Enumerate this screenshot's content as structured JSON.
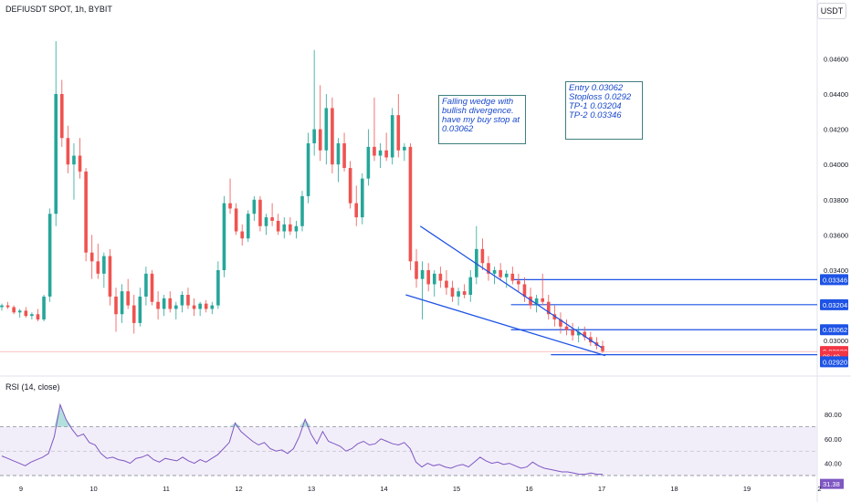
{
  "header": {
    "symbol": "DEFIUSDT SPOT, 1h, BYBIT",
    "currency": "USDT",
    "rsi_label": "RSI (14, close)"
  },
  "annotations": {
    "note1": "Falling wedge with\nbullish divergence.\nhave my buy stop at\n0.03062",
    "note2": "Entry 0.03062\nStoploss 0.0292\nTP-1 0.03204\nTP-2 0.03346"
  },
  "colors": {
    "up": "#26a69a",
    "down": "#ef5350",
    "level_line": "#1e53e5",
    "wedge": "#1e53e5",
    "rsi_line": "#7e57c2",
    "rsi_band": "#ede7f6",
    "current_price": "#f23645"
  },
  "chart_data": [
    {
      "type": "candlestick",
      "title": "DEFIUSDT SPOT, 1h, BYBIT",
      "x_ticks": [
        "9",
        "10",
        "11",
        "12",
        "13",
        "14",
        "15",
        "16",
        "17",
        "18",
        "19",
        "2"
      ],
      "x_range": [
        8.8,
        20.0
      ],
      "y_ticks": [
        "0.04600",
        "0.04400",
        "0.04200",
        "0.04000",
        "0.03800",
        "0.03600",
        "0.03400",
        "0.03000"
      ],
      "y_range": [
        0.0283,
        0.0483
      ],
      "price_labels": [
        {
          "label": "0.03346",
          "value": 0.03346,
          "color": "#1e53e5"
        },
        {
          "label": "0.03204",
          "value": 0.03204,
          "color": "#1e53e5"
        },
        {
          "label": "0.03062",
          "value": 0.03062,
          "color": "#1e53e5"
        },
        {
          "label": "0.02938",
          "value": 0.02938,
          "color": "#f23645"
        },
        {
          "label": "06:40",
          "value": 0.0291,
          "color": "#f23645"
        },
        {
          "label": "0.02920",
          "value": 0.0288,
          "color": "#1e53e5"
        }
      ],
      "horizontal_levels": [
        {
          "name": "TP-2",
          "value": 0.03346,
          "x_start": 15.75
        },
        {
          "name": "TP-1",
          "value": 0.03204,
          "x_start": 15.75
        },
        {
          "name": "Entry",
          "value": 0.03062,
          "x_start": 15.75
        },
        {
          "name": "Stoploss",
          "value": 0.0292,
          "x_start": 16.3
        }
      ],
      "wedge": {
        "upper": [
          [
            14.5,
            0.0365
          ],
          [
            17.0,
            0.0296
          ]
        ],
        "lower": [
          [
            14.3,
            0.0326
          ],
          [
            17.05,
            0.02915
          ]
        ]
      },
      "current_price": 0.02938,
      "candles": [
        [
          0.0319,
          0.0321,
          0.0317,
          0.032
        ],
        [
          0.032,
          0.0322,
          0.0318,
          0.0319
        ],
        [
          0.0319,
          0.032,
          0.0315,
          0.0316
        ],
        [
          0.0316,
          0.0318,
          0.0313,
          0.0317
        ],
        [
          0.0317,
          0.0319,
          0.0313,
          0.0314
        ],
        [
          0.0314,
          0.0316,
          0.0312,
          0.0315
        ],
        [
          0.0315,
          0.0318,
          0.0311,
          0.0312
        ],
        [
          0.0312,
          0.0326,
          0.0311,
          0.0325
        ],
        [
          0.0325,
          0.0375,
          0.0322,
          0.0372
        ],
        [
          0.0372,
          0.047,
          0.0365,
          0.044
        ],
        [
          0.044,
          0.0448,
          0.041,
          0.0415
        ],
        [
          0.0415,
          0.0422,
          0.0395,
          0.04
        ],
        [
          0.04,
          0.0412,
          0.038,
          0.0405
        ],
        [
          0.0405,
          0.0415,
          0.0392,
          0.0396
        ],
        [
          0.0396,
          0.0398,
          0.0345,
          0.035
        ],
        [
          0.035,
          0.036,
          0.0335,
          0.0345
        ],
        [
          0.0345,
          0.0355,
          0.0335,
          0.0338
        ],
        [
          0.0338,
          0.035,
          0.033,
          0.0348
        ],
        [
          0.0348,
          0.0352,
          0.032,
          0.0325
        ],
        [
          0.0325,
          0.033,
          0.0305,
          0.0315
        ],
        [
          0.0315,
          0.0332,
          0.031,
          0.0328
        ],
        [
          0.0328,
          0.0335,
          0.0318,
          0.032
        ],
        [
          0.032,
          0.0326,
          0.0304,
          0.031
        ],
        [
          0.031,
          0.033,
          0.0308,
          0.0325
        ],
        [
          0.0325,
          0.0342,
          0.032,
          0.0338
        ],
        [
          0.0338,
          0.034,
          0.032,
          0.0322
        ],
        [
          0.0322,
          0.0328,
          0.0312,
          0.0318
        ],
        [
          0.0318,
          0.0326,
          0.0314,
          0.0324
        ],
        [
          0.0324,
          0.0328,
          0.0316,
          0.0318
        ],
        [
          0.0318,
          0.0322,
          0.0312,
          0.032
        ],
        [
          0.032,
          0.0328,
          0.0316,
          0.0326
        ],
        [
          0.0326,
          0.033,
          0.0318,
          0.032
        ],
        [
          0.032,
          0.0324,
          0.0314,
          0.0318
        ],
        [
          0.0318,
          0.0322,
          0.0314,
          0.0321
        ],
        [
          0.0321,
          0.0323,
          0.0316,
          0.0318
        ],
        [
          0.0318,
          0.0322,
          0.0315,
          0.032
        ],
        [
          0.032,
          0.0345,
          0.0318,
          0.034
        ],
        [
          0.034,
          0.0382,
          0.0336,
          0.0378
        ],
        [
          0.0378,
          0.0392,
          0.0372,
          0.0375
        ],
        [
          0.0375,
          0.0378,
          0.036,
          0.0362
        ],
        [
          0.0362,
          0.0366,
          0.0354,
          0.0358
        ],
        [
          0.0358,
          0.0374,
          0.0356,
          0.0372
        ],
        [
          0.0372,
          0.0382,
          0.0368,
          0.038
        ],
        [
          0.038,
          0.0382,
          0.0362,
          0.0365
        ],
        [
          0.0365,
          0.0372,
          0.036,
          0.037
        ],
        [
          0.037,
          0.0378,
          0.0365,
          0.0368
        ],
        [
          0.0368,
          0.0372,
          0.036,
          0.0362
        ],
        [
          0.0362,
          0.037,
          0.0358,
          0.0366
        ],
        [
          0.0366,
          0.037,
          0.036,
          0.0362
        ],
        [
          0.0362,
          0.0368,
          0.0358,
          0.0365
        ],
        [
          0.0365,
          0.0385,
          0.0362,
          0.0382
        ],
        [
          0.0382,
          0.0418,
          0.0378,
          0.0412
        ],
        [
          0.0412,
          0.0465,
          0.0405,
          0.042
        ],
        [
          0.042,
          0.0445,
          0.0402,
          0.0408
        ],
        [
          0.0408,
          0.044,
          0.04,
          0.0432
        ],
        [
          0.0432,
          0.0438,
          0.0395,
          0.04
        ],
        [
          0.04,
          0.0415,
          0.039,
          0.0412
        ],
        [
          0.0412,
          0.0418,
          0.0396,
          0.0398
        ],
        [
          0.0398,
          0.0402,
          0.0375,
          0.0378
        ],
        [
          0.0378,
          0.0388,
          0.0365,
          0.037
        ],
        [
          0.037,
          0.0395,
          0.0366,
          0.0392
        ],
        [
          0.0392,
          0.042,
          0.0388,
          0.041
        ],
        [
          0.041,
          0.0438,
          0.0402,
          0.0405
        ],
        [
          0.0405,
          0.0412,
          0.0398,
          0.0408
        ],
        [
          0.0408,
          0.0418,
          0.0402,
          0.0404
        ],
        [
          0.0404,
          0.0432,
          0.04,
          0.0428
        ],
        [
          0.0428,
          0.044,
          0.0404,
          0.0408
        ],
        [
          0.0408,
          0.0412,
          0.0402,
          0.041
        ],
        [
          0.041,
          0.0412,
          0.034,
          0.0345
        ],
        [
          0.0345,
          0.0352,
          0.033,
          0.0335
        ],
        [
          0.0335,
          0.0345,
          0.0312,
          0.034
        ],
        [
          0.034,
          0.0344,
          0.0328,
          0.0332
        ],
        [
          0.0332,
          0.034,
          0.0325,
          0.0338
        ],
        [
          0.0338,
          0.0342,
          0.033,
          0.0334
        ],
        [
          0.0334,
          0.034,
          0.0326,
          0.033
        ],
        [
          0.033,
          0.0334,
          0.0322,
          0.0325
        ],
        [
          0.0325,
          0.033,
          0.032,
          0.0328
        ],
        [
          0.0328,
          0.0332,
          0.0324,
          0.0326
        ],
        [
          0.0326,
          0.034,
          0.0322,
          0.0336
        ],
        [
          0.0336,
          0.0365,
          0.0332,
          0.0352
        ],
        [
          0.0352,
          0.0358,
          0.034,
          0.0344
        ],
        [
          0.0344,
          0.0348,
          0.0334,
          0.0338
        ],
        [
          0.0338,
          0.0342,
          0.0332,
          0.034
        ],
        [
          0.034,
          0.0344,
          0.0334,
          0.0336
        ],
        [
          0.0336,
          0.034,
          0.033,
          0.0338
        ],
        [
          0.0338,
          0.0342,
          0.0332,
          0.0334
        ],
        [
          0.0334,
          0.0338,
          0.0328,
          0.0332
        ],
        [
          0.0332,
          0.0336,
          0.0322,
          0.0325
        ],
        [
          0.0325,
          0.033,
          0.0318,
          0.032
        ],
        [
          0.032,
          0.0326,
          0.0316,
          0.0324
        ],
        [
          0.0324,
          0.0338,
          0.032,
          0.0322
        ],
        [
          0.0322,
          0.0326,
          0.0312,
          0.0315
        ],
        [
          0.0315,
          0.032,
          0.0308,
          0.0312
        ],
        [
          0.0312,
          0.0316,
          0.0304,
          0.0308
        ],
        [
          0.0308,
          0.0312,
          0.0303,
          0.0306
        ],
        [
          0.0306,
          0.031,
          0.03,
          0.0303
        ],
        [
          0.0303,
          0.0308,
          0.0299,
          0.0305
        ],
        [
          0.0305,
          0.0308,
          0.03,
          0.0302
        ],
        [
          0.0302,
          0.0305,
          0.0297,
          0.0299
        ],
        [
          0.0299,
          0.0302,
          0.0295,
          0.0297
        ],
        [
          0.0297,
          0.03,
          0.0293,
          0.0294
        ]
      ]
    },
    {
      "type": "line",
      "name": "RSI (14, close)",
      "y_ticks": [
        "80.00",
        "60.00",
        "40.00"
      ],
      "y_range": [
        27,
        92
      ],
      "band": [
        30,
        70
      ],
      "midline": 50,
      "last_value_label": "31.38",
      "values": [
        46,
        44,
        42,
        40,
        38,
        41,
        43,
        45,
        48,
        62,
        88,
        76,
        68,
        62,
        64,
        57,
        55,
        48,
        44,
        45,
        43,
        42,
        40,
        44,
        45,
        47,
        43,
        41,
        44,
        43,
        42,
        45,
        42,
        40,
        43,
        41,
        44,
        47,
        52,
        57,
        73,
        66,
        62,
        58,
        55,
        57,
        52,
        50,
        51,
        48,
        52,
        62,
        76,
        64,
        56,
        66,
        58,
        56,
        54,
        50,
        52,
        56,
        58,
        55,
        56,
        60,
        58,
        56,
        55,
        57,
        52,
        41,
        37,
        40,
        38,
        39,
        37,
        36,
        38,
        39,
        37,
        41,
        45,
        42,
        40,
        41,
        39,
        40,
        38,
        36,
        37,
        41,
        38,
        36,
        35,
        34,
        33,
        33,
        32,
        31,
        31,
        32,
        31,
        31
      ]
    }
  ]
}
